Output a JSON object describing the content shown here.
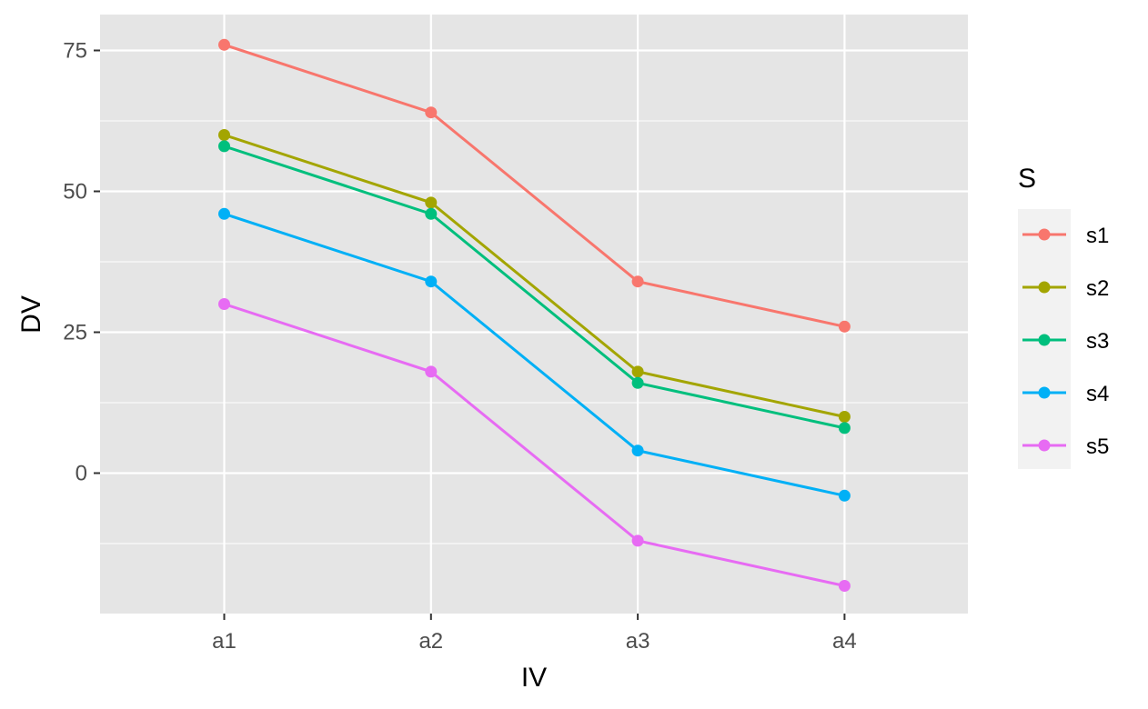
{
  "chart_data": {
    "type": "line",
    "xlabel": "IV",
    "ylabel": "DV",
    "categories": [
      "a1",
      "a2",
      "a3",
      "a4"
    ],
    "yticks": [
      0,
      25,
      50,
      75
    ],
    "ylim": [
      -25,
      80
    ],
    "grid": true,
    "legend": {
      "title": "S",
      "placement": "right"
    },
    "series": [
      {
        "name": "s1",
        "color": "#F8766D",
        "values": [
          76,
          64,
          34,
          26
        ]
      },
      {
        "name": "s2",
        "color": "#A3A500",
        "values": [
          60,
          48,
          18,
          10
        ]
      },
      {
        "name": "s3",
        "color": "#00BF7D",
        "values": [
          58,
          46,
          16,
          8
        ]
      },
      {
        "name": "s4",
        "color": "#00B0F6",
        "values": [
          46,
          34,
          4,
          -4
        ]
      },
      {
        "name": "s5",
        "color": "#E76BF3",
        "values": [
          30,
          18,
          -12,
          -20
        ]
      }
    ]
  }
}
